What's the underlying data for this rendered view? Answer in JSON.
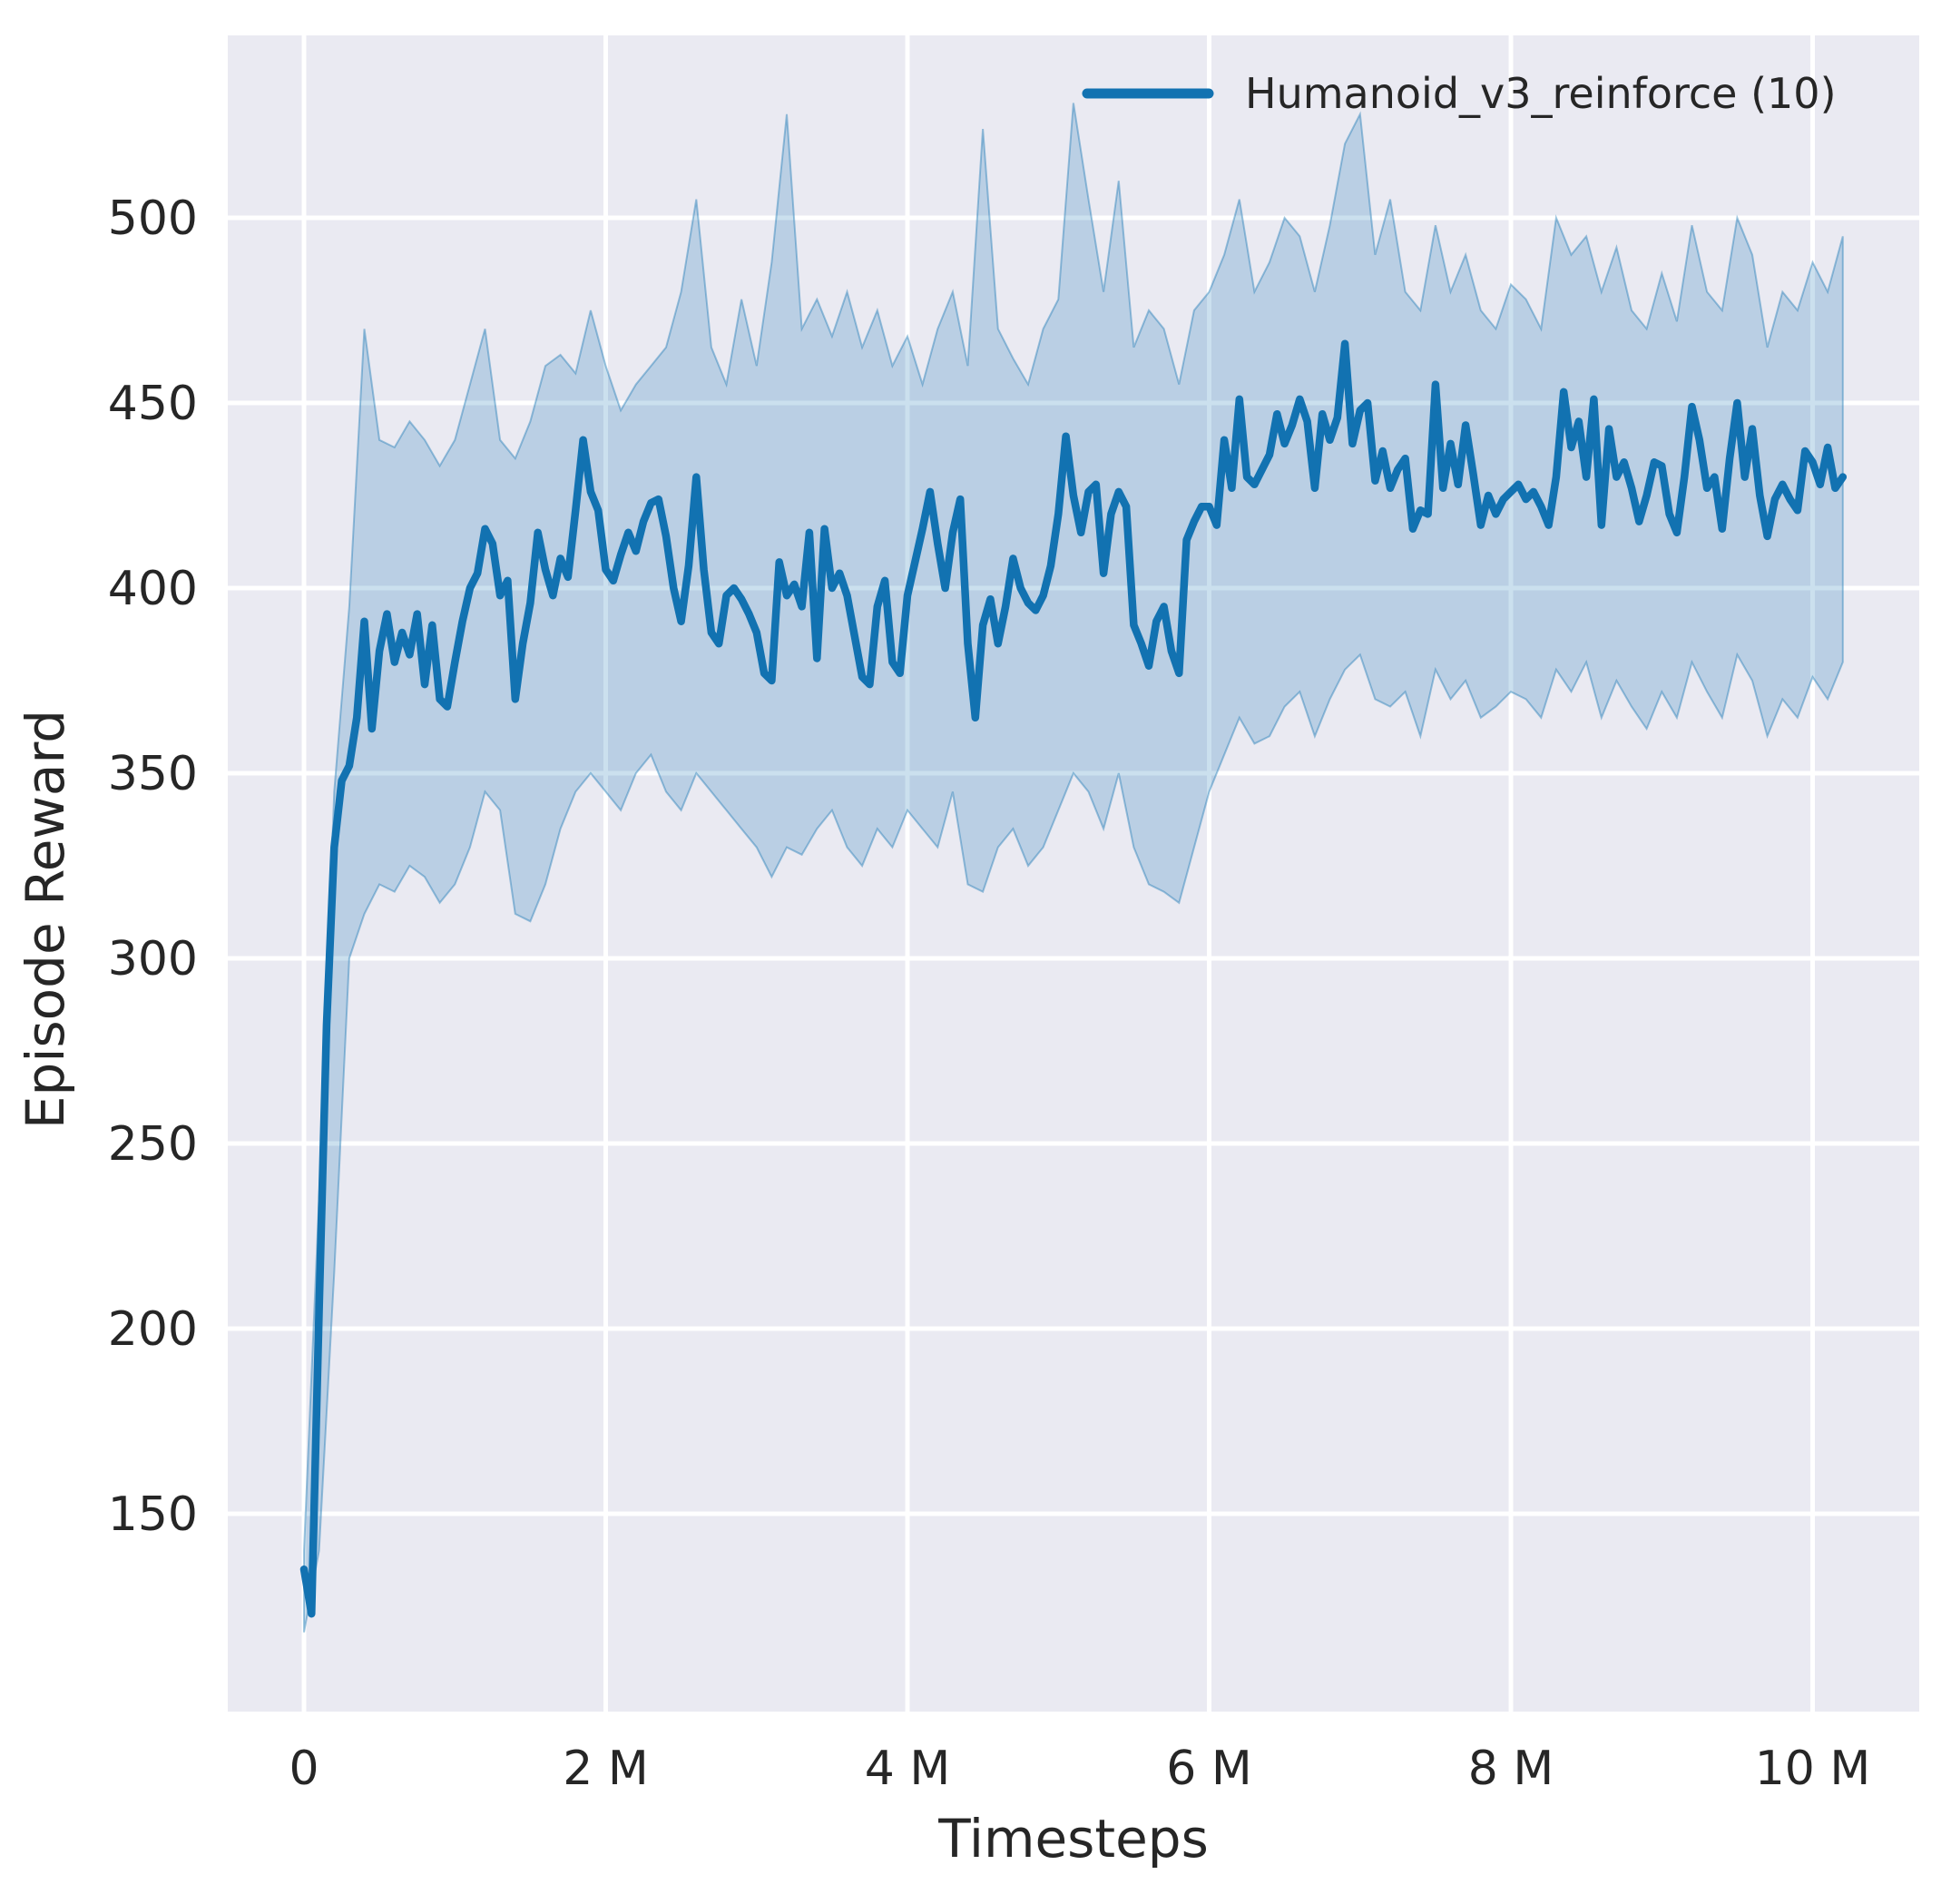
{
  "figure": {
    "background": "#ffffff",
    "plot_background": "#eaeaf2",
    "grid_color": "#ffffff",
    "text_color": "#262626"
  },
  "chart_data": {
    "type": "line",
    "title": "",
    "xlabel": "Timesteps",
    "ylabel": "Episode Reward",
    "grid": true,
    "legend": {
      "position": "upper right",
      "entries": [
        {
          "label": "Humanoid_v3_reinforce (10)",
          "color": "#1272b1"
        }
      ]
    },
    "xlim_millions": [
      -0.5,
      10.7
    ],
    "ylim": [
      96,
      549
    ],
    "xticks": [
      {
        "value": 0,
        "label": "0"
      },
      {
        "value": 2,
        "label": "2 M"
      },
      {
        "value": 4,
        "label": "4 M"
      },
      {
        "value": 6,
        "label": "6 M"
      },
      {
        "value": 8,
        "label": "8 M"
      },
      {
        "value": 10,
        "label": "10 M"
      }
    ],
    "yticks": [
      {
        "value": 150,
        "label": "150"
      },
      {
        "value": 200,
        "label": "200"
      },
      {
        "value": 250,
        "label": "250"
      },
      {
        "value": 300,
        "label": "300"
      },
      {
        "value": 350,
        "label": "350"
      },
      {
        "value": 400,
        "label": "400"
      },
      {
        "value": 450,
        "label": "450"
      },
      {
        "value": 500,
        "label": "500"
      }
    ],
    "series": [
      {
        "name": "Humanoid_v3_reinforce (10)",
        "color": "#1272b1",
        "line_width": 8.5,
        "band_alpha": 0.22,
        "x_unit": "millions of timesteps",
        "x_start": 0.0,
        "x_step": 0.05,
        "mean": [
          135,
          123,
          205,
          282,
          330,
          348,
          352,
          365,
          391,
          362,
          383,
          393,
          380,
          388,
          382,
          393,
          374,
          390,
          370,
          368,
          380,
          391,
          400,
          404,
          416,
          412,
          398,
          402,
          370,
          385,
          396,
          415,
          405,
          398,
          408,
          403,
          421,
          440,
          426,
          421,
          405,
          402,
          409,
          415,
          410,
          418,
          423,
          424,
          414,
          400,
          391,
          406,
          430,
          405,
          388,
          385,
          398,
          400,
          397,
          393,
          388,
          377,
          375,
          407,
          398,
          401,
          395,
          415,
          381,
          416,
          400,
          404,
          398,
          387,
          376,
          374,
          395,
          402,
          380,
          377,
          398,
          407,
          416,
          426,
          412,
          400,
          415,
          424,
          385,
          365,
          390,
          397,
          385,
          395,
          408,
          400,
          396,
          394,
          398,
          406,
          420,
          441,
          425,
          415,
          426,
          428,
          404,
          420,
          426,
          422,
          390,
          385,
          379,
          391,
          395,
          383,
          377,
          413,
          418,
          422,
          422,
          417,
          440,
          427,
          451,
          430,
          428,
          432,
          436,
          447,
          439,
          444,
          451,
          445,
          427,
          447,
          440,
          446,
          466,
          439,
          448,
          450,
          429,
          437,
          427,
          432,
          435,
          416,
          421,
          420,
          455,
          427,
          439,
          428,
          444,
          431,
          417,
          425,
          420,
          424,
          426,
          428,
          424,
          426,
          422,
          417,
          430,
          453,
          438,
          445,
          430,
          451,
          417,
          443,
          430,
          434,
          427,
          418,
          425,
          434,
          433,
          420,
          415,
          430,
          449,
          440,
          427,
          430,
          416,
          435,
          450,
          430,
          443,
          425,
          414,
          424,
          428,
          424,
          421,
          437,
          434,
          428,
          438,
          427,
          430
        ],
        "band": {
          "x_start": 0.0,
          "x_step": 0.1,
          "lower": [
            118,
            140,
            215,
            300,
            312,
            320,
            318,
            325,
            322,
            315,
            320,
            330,
            345,
            340,
            312,
            310,
            320,
            335,
            345,
            350,
            345,
            340,
            350,
            355,
            345,
            340,
            350,
            345,
            340,
            335,
            330,
            322,
            330,
            328,
            335,
            340,
            330,
            325,
            335,
            330,
            340,
            335,
            330,
            345,
            320,
            318,
            330,
            335,
            325,
            330,
            340,
            350,
            345,
            335,
            350,
            330,
            320,
            318,
            315,
            330,
            345,
            355,
            365,
            358,
            360,
            368,
            372,
            360,
            370,
            378,
            382,
            370,
            368,
            372,
            360,
            378,
            370,
            375,
            365,
            368,
            372,
            370,
            365,
            378,
            372,
            380,
            365,
            375,
            368,
            362,
            372,
            365,
            380,
            372,
            365,
            382,
            375,
            360,
            370,
            365,
            376,
            370,
            380
          ],
          "upper": [
            140,
            235,
            345,
            395,
            470,
            440,
            438,
            445,
            440,
            433,
            440,
            455,
            470,
            440,
            435,
            445,
            460,
            463,
            458,
            475,
            460,
            448,
            455,
            460,
            465,
            480,
            505,
            465,
            455,
            478,
            460,
            488,
            528,
            470,
            478,
            468,
            480,
            465,
            475,
            460,
            468,
            455,
            470,
            480,
            460,
            524,
            470,
            462,
            455,
            470,
            478,
            531,
            505,
            480,
            510,
            465,
            475,
            470,
            455,
            475,
            480,
            490,
            505,
            480,
            488,
            500,
            495,
            480,
            498,
            520,
            528,
            490,
            505,
            480,
            475,
            498,
            480,
            490,
            475,
            470,
            482,
            478,
            470,
            500,
            490,
            495,
            480,
            492,
            475,
            470,
            485,
            472,
            498,
            480,
            475,
            500,
            490,
            465,
            480,
            475,
            488,
            480,
            495
          ]
        }
      }
    ]
  }
}
